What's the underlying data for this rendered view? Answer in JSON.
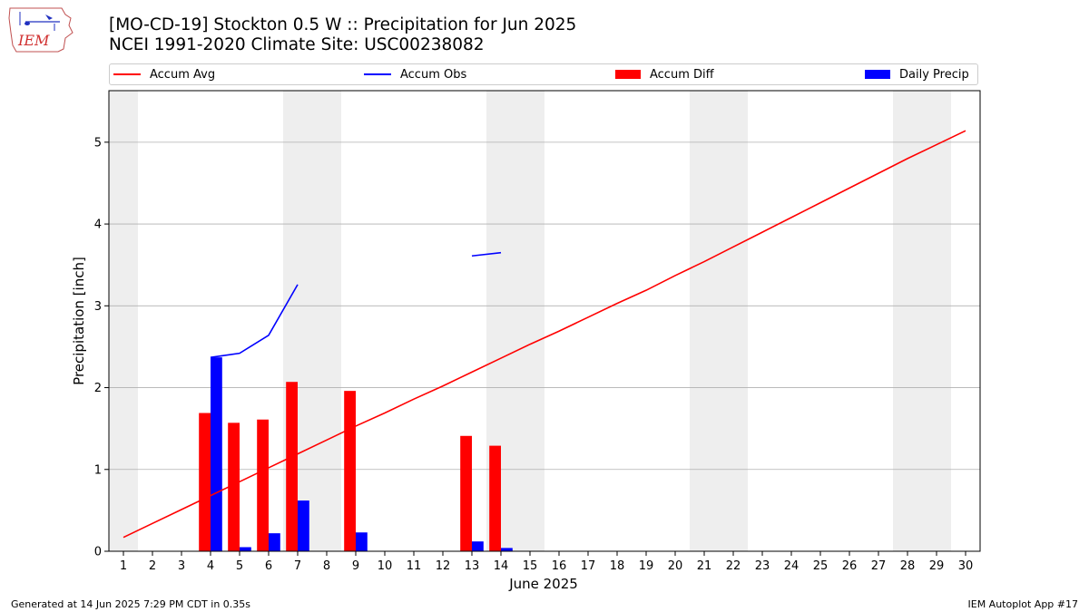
{
  "header": {
    "title_line1": "[MO-CD-19] Stockton 0.5 W :: Precipitation for Jun 2025",
    "title_line2": "NCEI 1991-2020 Climate Site: USC00238082"
  },
  "logo": {
    "text": "IEM"
  },
  "legend": {
    "placement": "top, above plot, full width",
    "items": [
      {
        "label": "Accum Avg",
        "kind": "line",
        "color": "#ff0000"
      },
      {
        "label": "Accum Obs",
        "kind": "line",
        "color": "#0000ff"
      },
      {
        "label": "Accum Diff",
        "kind": "bar",
        "color": "#ff0000"
      },
      {
        "label": "Daily Precip",
        "kind": "bar",
        "color": "#0000ff"
      }
    ]
  },
  "colors": {
    "avg": "#ff0000",
    "obs": "#0000ff",
    "weekend_shade": "#eeeeee",
    "grid": "#b0b0b0"
  },
  "chart_data": {
    "type": "bar",
    "title": "[MO-CD-19] Stockton 0.5 W :: Precipitation for Jun 2025",
    "subtitle": "NCEI 1991-2020 Climate Site: USC00238082",
    "xlabel": "June 2025",
    "ylabel": "Precipitation [inch]",
    "xlim": [
      0.5,
      30.5
    ],
    "ylim": [
      0,
      5.63
    ],
    "yticks": [
      0,
      1,
      2,
      3,
      4,
      5
    ],
    "grid": "horizontal",
    "x": [
      1,
      2,
      3,
      4,
      5,
      6,
      7,
      8,
      9,
      10,
      11,
      12,
      13,
      14,
      15,
      16,
      17,
      18,
      19,
      20,
      21,
      22,
      23,
      24,
      25,
      26,
      27,
      28,
      29,
      30
    ],
    "shaded_days": [
      [
        0.5,
        1.5
      ],
      [
        6.5,
        8.5
      ],
      [
        13.5,
        15.5
      ],
      [
        20.5,
        22.5
      ],
      [
        27.5,
        29.5
      ]
    ],
    "series": [
      {
        "name": "Accum Avg",
        "type": "line",
        "color": "#ff0000",
        "values": [
          0.17,
          0.34,
          0.51,
          0.68,
          0.85,
          1.02,
          1.19,
          1.36,
          1.53,
          1.69,
          1.86,
          2.02,
          2.19,
          2.36,
          2.53,
          2.69,
          2.86,
          3.03,
          3.19,
          3.37,
          3.54,
          3.72,
          3.9,
          4.08,
          4.26,
          4.44,
          4.62,
          4.8,
          4.97,
          5.14
        ]
      },
      {
        "name": "Accum Obs",
        "type": "line",
        "color": "#0000ff",
        "values": [
          null,
          null,
          null,
          2.37,
          2.42,
          2.64,
          3.26,
          null,
          null,
          null,
          null,
          null,
          3.61,
          3.65,
          null,
          null,
          null,
          null,
          null,
          null,
          null,
          null,
          null,
          null,
          null,
          null,
          null,
          null,
          null,
          null
        ]
      },
      {
        "name": "Accum Diff",
        "type": "bar",
        "color": "#ff0000",
        "values": [
          null,
          null,
          null,
          1.69,
          1.57,
          1.61,
          2.07,
          null,
          1.96,
          null,
          null,
          null,
          1.41,
          1.29,
          null,
          null,
          null,
          null,
          null,
          null,
          null,
          null,
          null,
          null,
          null,
          null,
          null,
          null,
          null,
          null
        ]
      },
      {
        "name": "Daily Precip",
        "type": "bar",
        "color": "#0000ff",
        "values": [
          null,
          null,
          null,
          2.37,
          0.05,
          0.22,
          0.62,
          null,
          0.23,
          null,
          null,
          null,
          0.12,
          0.04,
          null,
          null,
          null,
          null,
          null,
          null,
          null,
          null,
          null,
          null,
          null,
          null,
          null,
          null,
          null,
          null
        ]
      }
    ]
  },
  "footer": {
    "left": "Generated at 14 Jun 2025 7:29 PM CDT in 0.35s",
    "right": "IEM Autoplot App #17"
  }
}
